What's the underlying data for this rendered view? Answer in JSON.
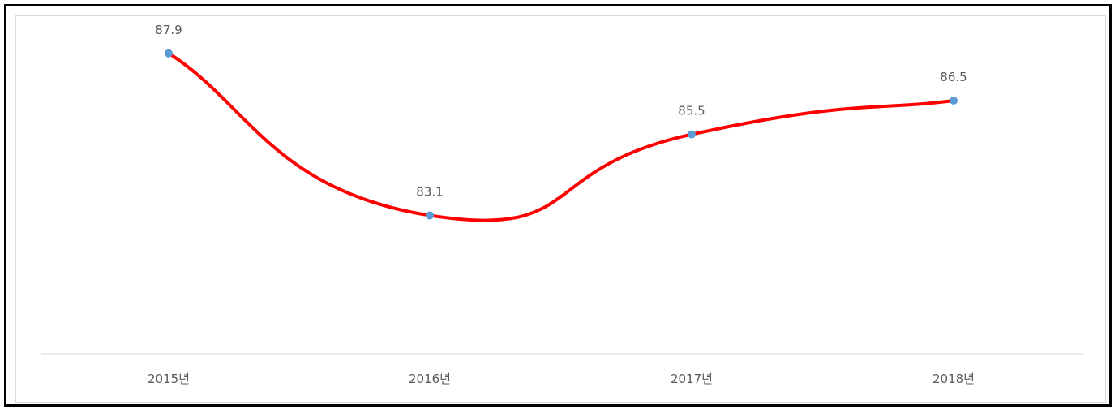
{
  "chart_data": {
    "type": "line",
    "smooth": true,
    "categories": [
      "2015년",
      "2016년",
      "2017년",
      "2018년"
    ],
    "series": [
      {
        "values": [
          87.9,
          83.1,
          85.5,
          86.5
        ]
      }
    ],
    "data_labels": [
      "87.9",
      "83.1",
      "85.5",
      "86.5"
    ],
    "ylim": [
      79.0,
      89.0
    ],
    "grid": false,
    "legend": "none",
    "line_color": "#ff0000",
    "marker_color": "#5b9bd5",
    "axis_color": "#d9d9d9",
    "label_color": "#595959"
  }
}
